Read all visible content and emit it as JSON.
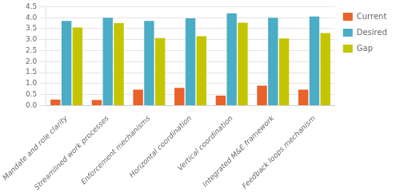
{
  "chart_data": {
    "type": "bar",
    "categories": [
      "Mandate and role clarity",
      "Streamlined work processes",
      "Enforcement mechanisms",
      "Horizontal coordination",
      "Vertical coordination",
      "Integrated M&E framework",
      "Feedback loops mechanism"
    ],
    "series": [
      {
        "name": "Current",
        "color": "#e8622a",
        "values": [
          0.27,
          0.25,
          0.72,
          0.8,
          0.45,
          0.9,
          0.72
        ]
      },
      {
        "name": "Desired",
        "color": "#4bacc6",
        "values": [
          3.85,
          4.0,
          3.85,
          3.97,
          4.2,
          4.0,
          4.05
        ]
      },
      {
        "name": "Gap",
        "color": "#c4c400",
        "values": [
          3.55,
          3.75,
          3.07,
          3.15,
          3.77,
          3.05,
          3.3
        ]
      }
    ],
    "ylim": [
      0,
      4.5
    ],
    "yticks": [
      {
        "value": 0,
        "label": "0.0"
      },
      0.5,
      {
        "value": 1.0,
        "label": "1.0"
      },
      1.5,
      {
        "value": 2.0,
        "label": "2.0"
      },
      2.5,
      {
        "value": 3.0,
        "label": "3.0"
      },
      3.5,
      {
        "value": 4.0,
        "label": "4.0"
      },
      4.5
    ],
    "grid": true,
    "legend": "right"
  }
}
